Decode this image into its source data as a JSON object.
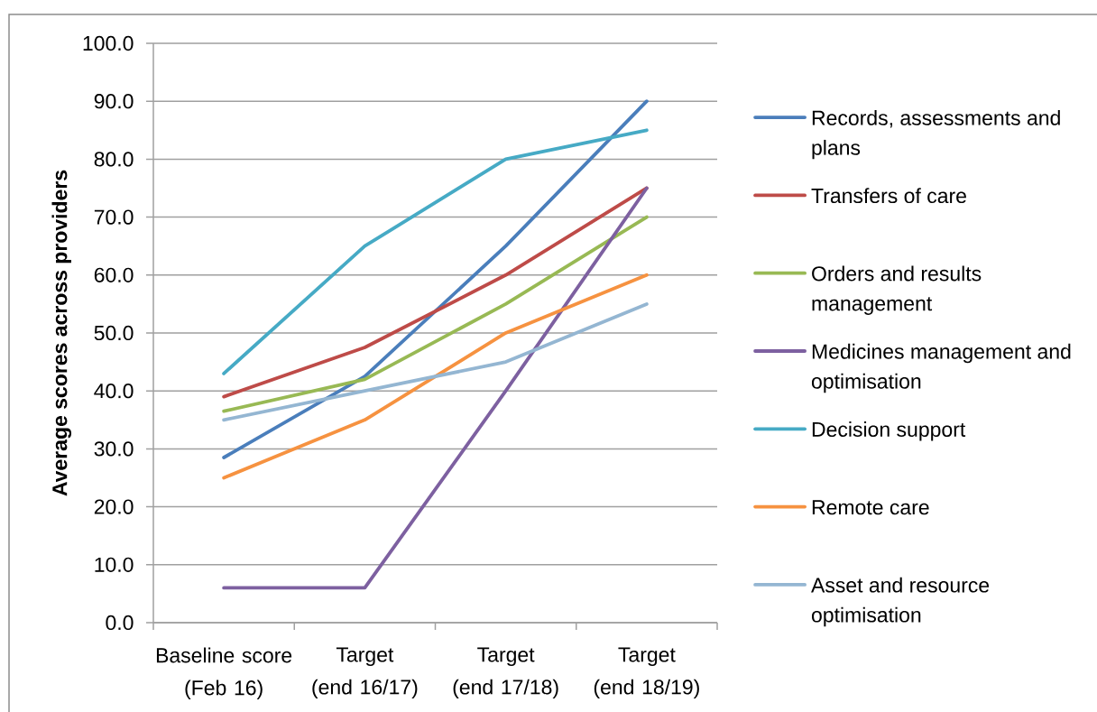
{
  "chart_data": {
    "type": "line",
    "ylabel": "Average scores across providers",
    "categories": [
      "Baseline score (Feb 16)",
      "Target (end 16/17)",
      "Target (end 17/18)",
      "Target (end 18/19)"
    ],
    "series": [
      {
        "name": "Records, assessments and plans",
        "color": "#4A7EBB",
        "values": [
          28.5,
          42.5,
          65,
          90
        ]
      },
      {
        "name": "Transfers of care",
        "color": "#BE4B48",
        "values": [
          39,
          47.5,
          60,
          75
        ]
      },
      {
        "name": "Orders and results management",
        "color": "#98B954",
        "values": [
          36.5,
          42,
          55,
          70
        ]
      },
      {
        "name": "Medicines management and optimisation",
        "color": "#7D60A0",
        "values": [
          6,
          6,
          40,
          75
        ]
      },
      {
        "name": "Decision support",
        "color": "#46AAC5",
        "values": [
          43,
          65,
          80,
          85
        ]
      },
      {
        "name": "Remote care",
        "color": "#F69240",
        "values": [
          25,
          35,
          50,
          60
        ]
      },
      {
        "name": "Asset and resource optimisation",
        "color": "#94B6D2",
        "values": [
          35,
          40,
          45,
          55
        ]
      }
    ],
    "ylim": [
      0,
      100
    ],
    "yticks": [
      {
        "value": 0,
        "label": "0.0"
      },
      {
        "value": 10,
        "label": "10.0"
      },
      {
        "value": 20,
        "label": "20.0"
      },
      {
        "value": 30,
        "label": "30.0"
      },
      {
        "value": 40,
        "label": "40.0"
      },
      {
        "value": 50,
        "label": "50.0"
      },
      {
        "value": 60,
        "label": "60.0"
      },
      {
        "value": 70,
        "label": "70.0"
      },
      {
        "value": 80,
        "label": "80.0"
      },
      {
        "value": 90,
        "label": "90.0"
      },
      {
        "value": 100,
        "label": "100.0"
      }
    ],
    "grid": "y",
    "legend": "right"
  }
}
